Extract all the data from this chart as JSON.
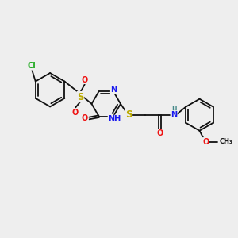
{
  "bg_color": "#eeeeee",
  "figsize": [
    3.0,
    3.0
  ],
  "dpi": 100,
  "bond_color": "#111111",
  "bond_width": 1.3,
  "font_size": 7.0,
  "colors": {
    "C": "#111111",
    "N": "#1a1aee",
    "O": "#ee1111",
    "S": "#bbaa00",
    "Cl": "#22aa22",
    "H": "#448888"
  }
}
